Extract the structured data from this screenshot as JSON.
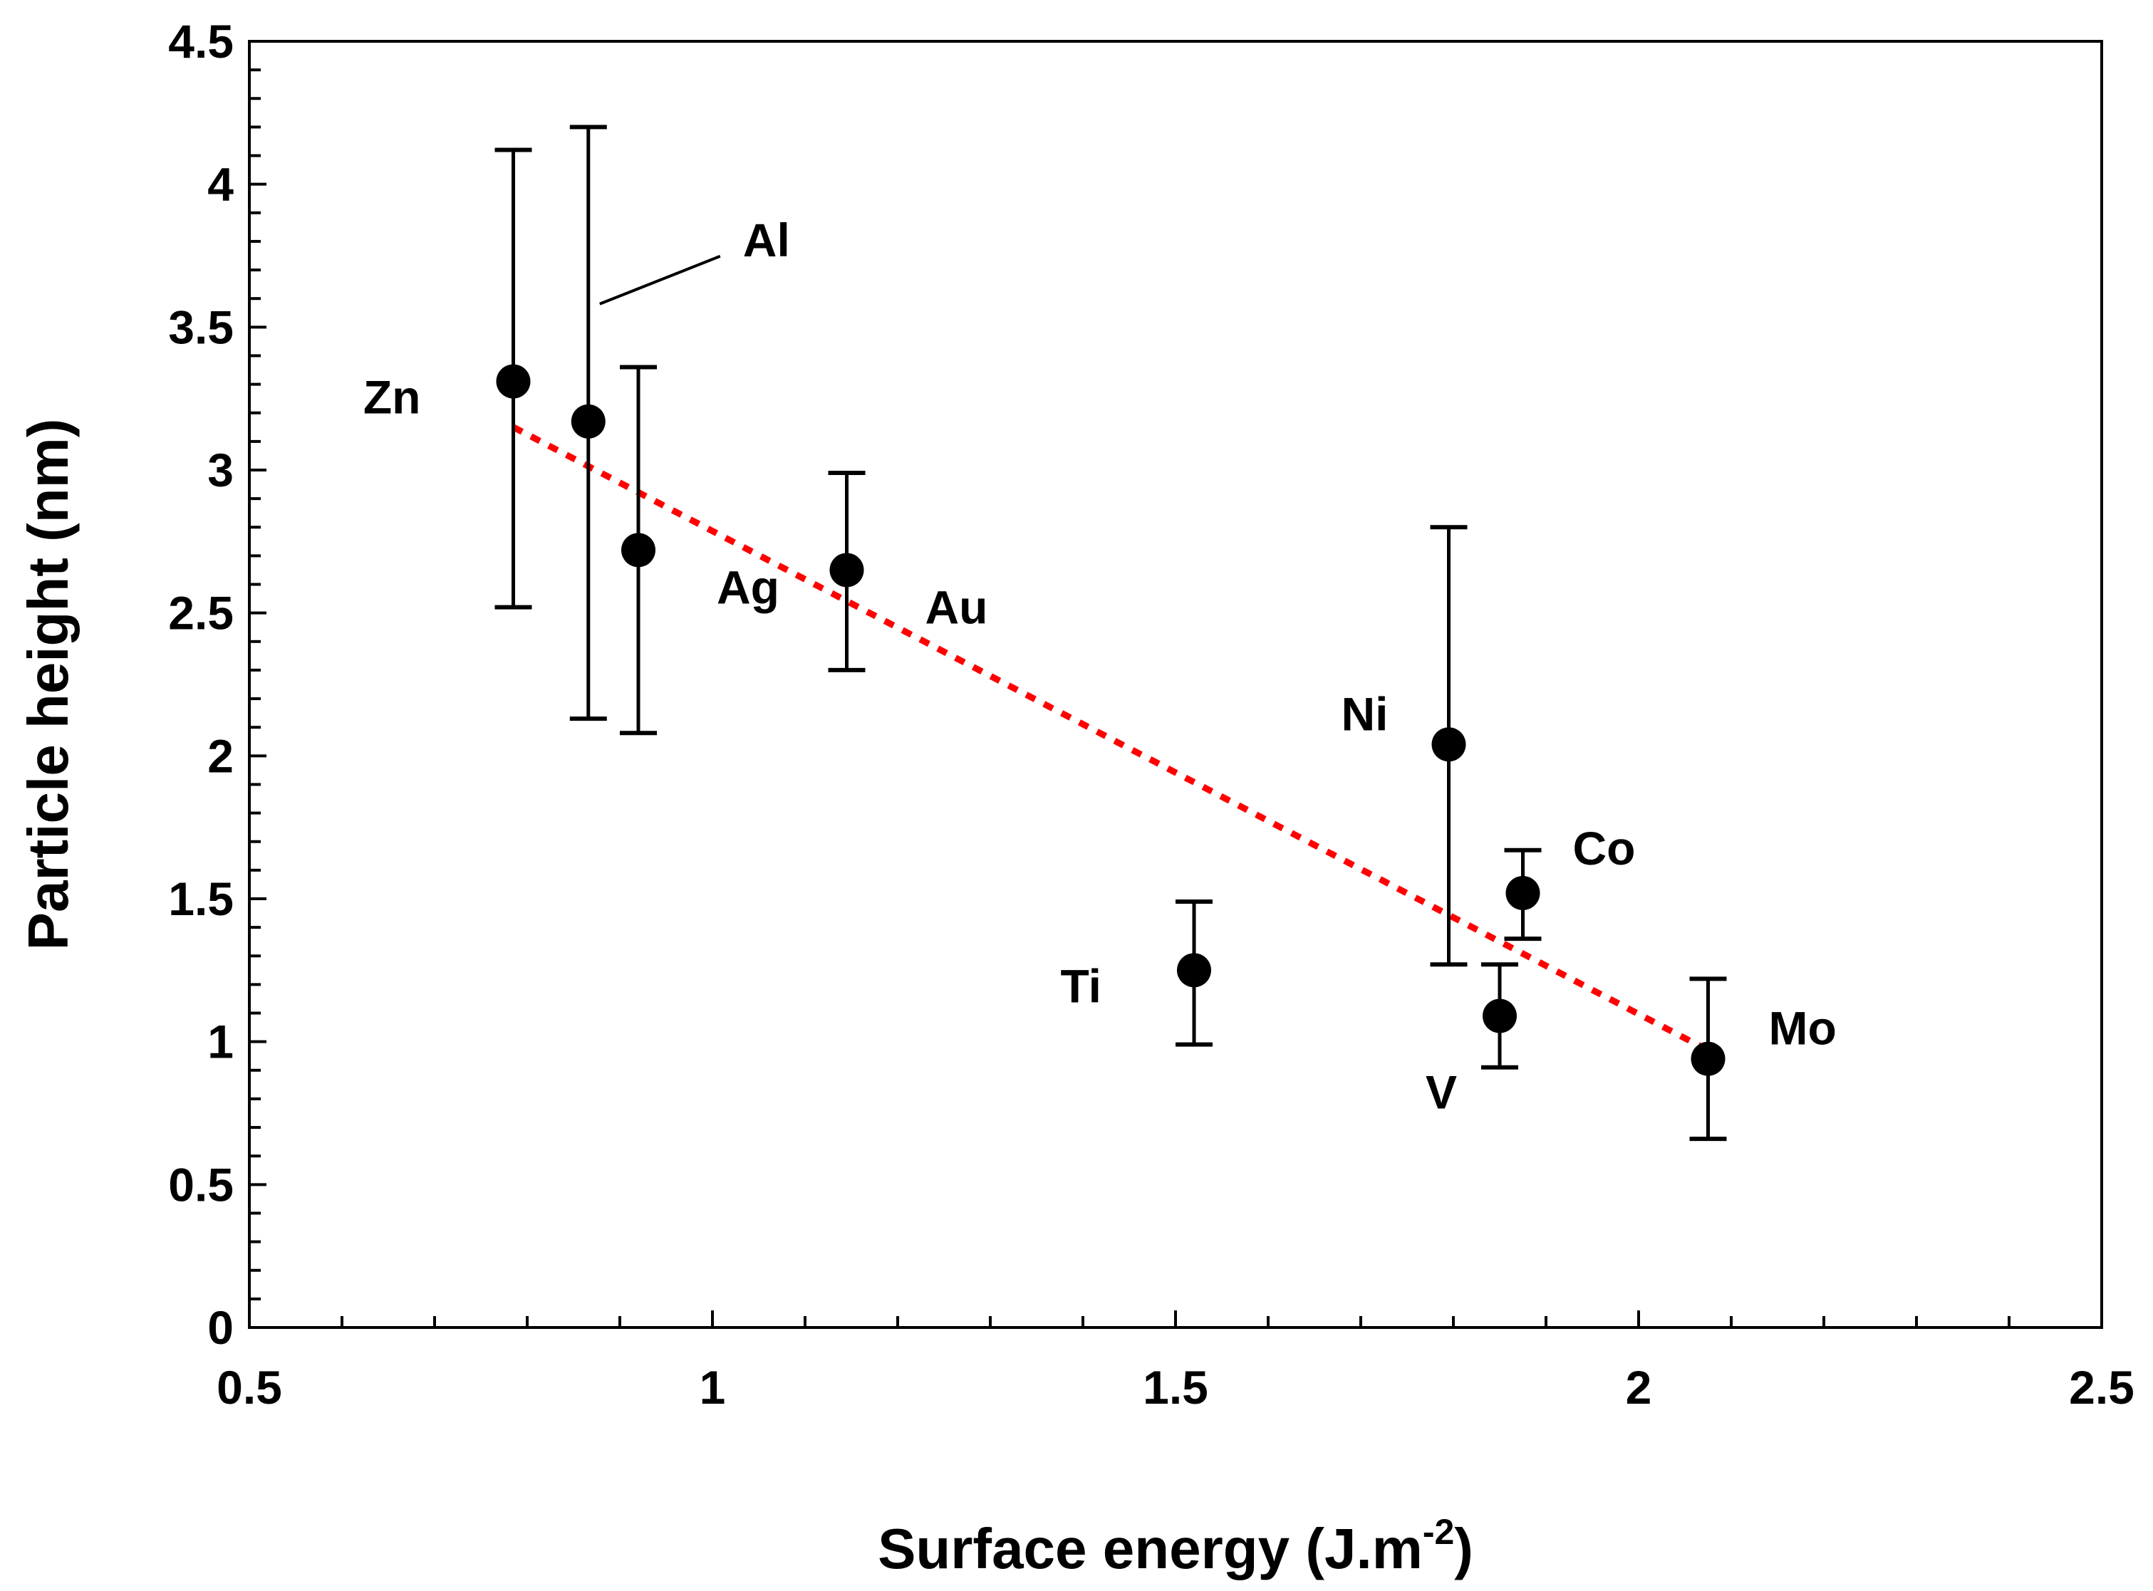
{
  "chart_data": {
    "type": "scatter",
    "xlabel": "Surface energy (J.m",
    "xlabel_superscript": "-2",
    "xlabel_suffix": ")",
    "ylabel": "Particle height (nm)",
    "xlim": [
      0.5,
      2.5
    ],
    "ylim": [
      0,
      4.5
    ],
    "x_major_ticks": [
      0.5,
      1,
      1.5,
      2,
      2.5
    ],
    "x_tick_labels": [
      "0.5",
      "1",
      "1.5",
      "2",
      "2.5"
    ],
    "x_minor_step": 0.1,
    "y_major_ticks": [
      0,
      0.5,
      1,
      1.5,
      2,
      2.5,
      3,
      3.5,
      4,
      4.5
    ],
    "y_tick_labels": [
      "0",
      "0.5",
      "1",
      "1.5",
      "2",
      "2.5",
      "3",
      "3.5",
      "4",
      "4.5"
    ],
    "y_minor_step": 0.1,
    "grid": false,
    "points": [
      {
        "label": "Zn",
        "x": 0.785,
        "y": 3.31,
        "err_low": 2.52,
        "err_high": 4.12,
        "label_pos": "left"
      },
      {
        "label": "Al",
        "x": 0.866,
        "y": 3.17,
        "err_low": 2.13,
        "err_high": 4.2,
        "label_pos": "upper-right-leader"
      },
      {
        "label": "Ag",
        "x": 0.92,
        "y": 2.72,
        "err_low": 2.08,
        "err_high": 3.36,
        "label_pos": "lower-right"
      },
      {
        "label": "Au",
        "x": 1.145,
        "y": 2.65,
        "err_low": 2.3,
        "err_high": 2.99,
        "label_pos": "lower-right"
      },
      {
        "label": "Ti",
        "x": 1.52,
        "y": 1.25,
        "err_low": 0.99,
        "err_high": 1.49,
        "label_pos": "left"
      },
      {
        "label": "Ni",
        "x": 1.795,
        "y": 2.04,
        "err_low": 1.27,
        "err_high": 2.8,
        "label_pos": "upper-left"
      },
      {
        "label": "V",
        "x": 1.85,
        "y": 1.09,
        "err_low": 0.91,
        "err_high": 1.27,
        "label_pos": "lower-left"
      },
      {
        "label": "Co",
        "x": 1.875,
        "y": 1.52,
        "err_low": 1.36,
        "err_high": 1.67,
        "label_pos": "upper-right"
      },
      {
        "label": "Mo",
        "x": 2.075,
        "y": 0.94,
        "err_low": 0.66,
        "err_high": 1.22,
        "label_pos": "right"
      }
    ],
    "trendline": {
      "style": "dotted",
      "color": "#ff0000",
      "x": [
        0.785,
        2.075
      ],
      "y": [
        3.15,
        0.97
      ]
    }
  }
}
